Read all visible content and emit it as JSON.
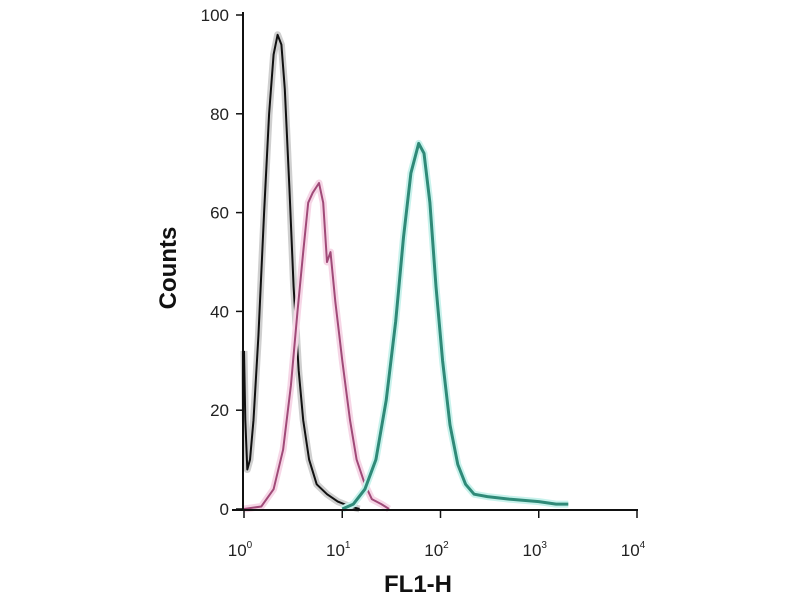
{
  "chart_data": {
    "type": "line",
    "title": "",
    "xlabel": "FL1-H",
    "ylabel": "Counts",
    "xscale": "log",
    "xlim": [
      1,
      10000
    ],
    "ylim": [
      0,
      100
    ],
    "grid": false,
    "legend": "none",
    "x_ticks": [
      {
        "base": "10",
        "exp": "0",
        "value": 1
      },
      {
        "base": "10",
        "exp": "1",
        "value": 10
      },
      {
        "base": "10",
        "exp": "2",
        "value": 100
      },
      {
        "base": "10",
        "exp": "3",
        "value": 1000
      },
      {
        "base": "10",
        "exp": "4",
        "value": 10000
      }
    ],
    "y_ticks": [
      "0",
      "20",
      "40",
      "60",
      "80",
      "100"
    ],
    "series": [
      {
        "color": "#111111",
        "glow": "#cfcfcf",
        "points": [
          [
            1.0,
            32
          ],
          [
            1.03,
            18
          ],
          [
            1.08,
            8
          ],
          [
            1.15,
            10
          ],
          [
            1.25,
            18
          ],
          [
            1.4,
            35
          ],
          [
            1.6,
            60
          ],
          [
            1.8,
            80
          ],
          [
            2.0,
            92
          ],
          [
            2.2,
            96
          ],
          [
            2.4,
            94
          ],
          [
            2.6,
            85
          ],
          [
            2.9,
            65
          ],
          [
            3.2,
            45
          ],
          [
            3.6,
            28
          ],
          [
            4.0,
            18
          ],
          [
            4.6,
            10
          ],
          [
            5.5,
            5
          ],
          [
            7,
            3
          ],
          [
            9,
            1.5
          ],
          [
            12,
            0.5
          ],
          [
            15,
            0
          ]
        ]
      },
      {
        "color": "#a04a78",
        "glow": "#f6d6e6",
        "points": [
          [
            1.0,
            0
          ],
          [
            1.5,
            0.5
          ],
          [
            2.0,
            4
          ],
          [
            2.5,
            12
          ],
          [
            3.0,
            25
          ],
          [
            3.5,
            40
          ],
          [
            4.0,
            52
          ],
          [
            4.5,
            62
          ],
          [
            5.0,
            64
          ],
          [
            5.8,
            66
          ],
          [
            6.4,
            62
          ],
          [
            7.0,
            50
          ],
          [
            7.6,
            52
          ],
          [
            8.5,
            42
          ],
          [
            10,
            30
          ],
          [
            12,
            18
          ],
          [
            14,
            10
          ],
          [
            17,
            5
          ],
          [
            20,
            2
          ],
          [
            25,
            1
          ],
          [
            30,
            0
          ]
        ]
      },
      {
        "color": "#2f8a78",
        "glow": "#c8f2ec",
        "points": [
          [
            10,
            0
          ],
          [
            13,
            1
          ],
          [
            17,
            4
          ],
          [
            22,
            10
          ],
          [
            28,
            22
          ],
          [
            35,
            38
          ],
          [
            42,
            55
          ],
          [
            50,
            68
          ],
          [
            60,
            74
          ],
          [
            68,
            72
          ],
          [
            78,
            62
          ],
          [
            90,
            45
          ],
          [
            105,
            30
          ],
          [
            125,
            17
          ],
          [
            150,
            9
          ],
          [
            180,
            5
          ],
          [
            220,
            3
          ],
          [
            300,
            2.5
          ],
          [
            500,
            2
          ],
          [
            1000,
            1.5
          ],
          [
            1500,
            1
          ],
          [
            2000,
            1
          ]
        ]
      }
    ]
  }
}
